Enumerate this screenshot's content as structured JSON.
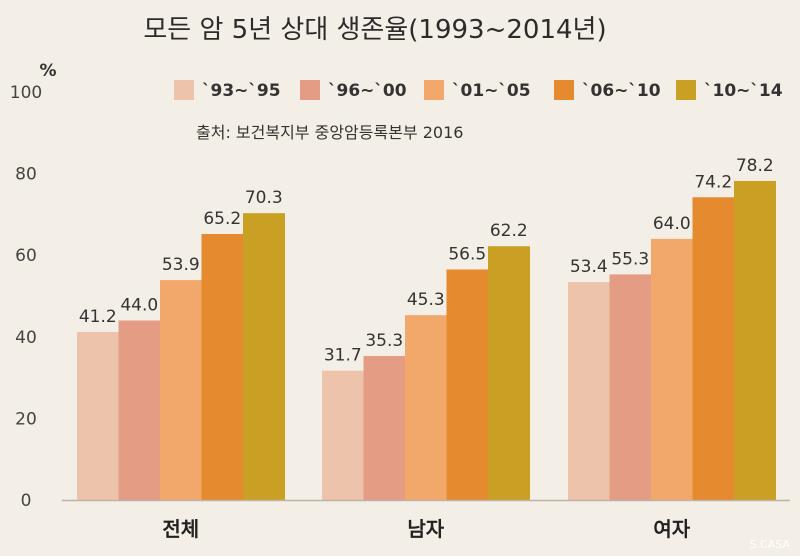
{
  "chart_data": {
    "type": "bar",
    "title": "모든 암 5년 상대 생존율(1993~2014년)",
    "unit": "%",
    "source": "출처: 보건복지부 중앙암등록본부 2016",
    "watermark": "S.CASA",
    "ylim": [
      0,
      100
    ],
    "yticks": [
      0,
      20,
      40,
      60,
      80,
      100
    ],
    "categories": [
      "전체",
      "남자",
      "여자"
    ],
    "legend_position": "top-right",
    "series": [
      {
        "name": "`93~`95",
        "color": "#eec3ab",
        "values": [
          41.2,
          31.7,
          53.4
        ]
      },
      {
        "name": "`96~`00",
        "color": "#e49c84",
        "values": [
          44.0,
          35.3,
          55.3
        ]
      },
      {
        "name": "`01~`05",
        "color": "#f3a86b",
        "values": [
          53.9,
          45.3,
          64.0
        ]
      },
      {
        "name": "`06~`10",
        "color": "#e58a2f",
        "values": [
          65.2,
          56.5,
          74.2
        ]
      },
      {
        "name": "`10~`14",
        "color": "#c9a024",
        "values": [
          70.3,
          62.2,
          78.2
        ]
      }
    ],
    "value_labels": [
      [
        "41.2",
        "44.0",
        "53.9",
        "65.2",
        "70.3"
      ],
      [
        "31.7",
        "35.3",
        "45.3",
        "56.5",
        "62.2"
      ],
      [
        "53.4",
        "55.3",
        "64.0",
        "74.2",
        "78.2"
      ]
    ]
  }
}
